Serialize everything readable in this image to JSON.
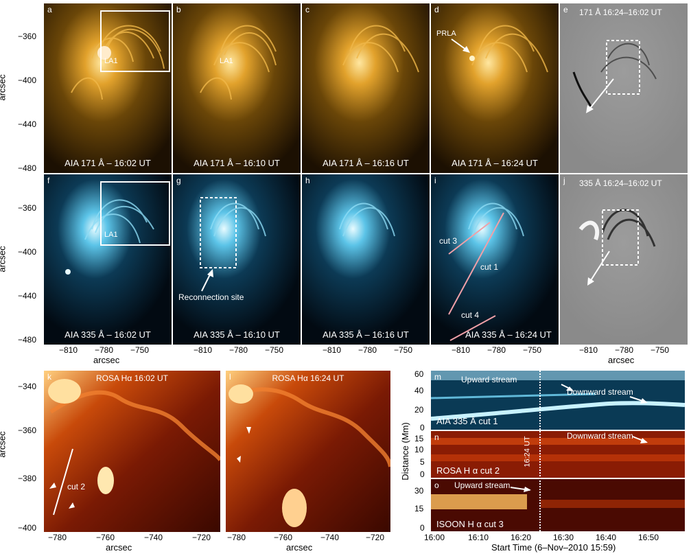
{
  "row1": {
    "panels": [
      {
        "label": "a",
        "caption": "AIA 171 Å – 16:02 UT",
        "annotation": "LA1"
      },
      {
        "label": "b",
        "caption": "AIA 171 Å – 16:10 UT",
        "annotation": "LA1"
      },
      {
        "label": "c",
        "caption": "AIA 171 Å – 16:16 UT"
      },
      {
        "label": "d",
        "caption": "AIA 171 Å – 16:24 UT",
        "annotation": "PRLA"
      },
      {
        "label": "e",
        "title": "171 Å 16:24–16:02 UT"
      }
    ],
    "yticks": [
      "−360",
      "−400",
      "−440",
      "−480"
    ],
    "ylabel": "arcsec"
  },
  "row2": {
    "panels": [
      {
        "label": "f",
        "caption": "AIA 335 Å – 16:02 UT",
        "annotation": "LA1"
      },
      {
        "label": "g",
        "caption": "AIA 335 Å – 16:10 UT",
        "annotation": "Reconnection site"
      },
      {
        "label": "h",
        "caption": "AIA 335 Å – 16:16 UT"
      },
      {
        "label": "i",
        "caption": "AIA 335 Å – 16:24 UT",
        "cut3": "cut 3",
        "cut1": "cut 1",
        "cut4": "cut 4"
      },
      {
        "label": "j",
        "title": "335 Å 16:24–16:02 UT"
      }
    ],
    "yticks": [
      "−360",
      "−400",
      "−440",
      "−480"
    ],
    "ylabel": "arcsec",
    "xticks": [
      "−810",
      "−780",
      "−750"
    ],
    "xlabel": "arcsec"
  },
  "row3": {
    "k": {
      "label": "k",
      "title": "ROSA Hα 16:02 UT",
      "cut": "cut 2"
    },
    "l": {
      "label": "l",
      "title": "ROSA Hα 16:24 UT"
    },
    "yticks": [
      "−340",
      "−360",
      "−380",
      "−400"
    ],
    "xticks": [
      "−780",
      "−760",
      "−740",
      "−720"
    ],
    "ylabel": "arcsec",
    "xlabel": "arcsec"
  },
  "timeplots": {
    "m": {
      "label": "m",
      "caption": "AIA 335 Å cut 1",
      "up": "Upward stream",
      "down": "Downward stream",
      "yticks": [
        "60",
        "40",
        "20",
        "0"
      ]
    },
    "n": {
      "label": "n",
      "caption": "ROSA H α cut 2",
      "down": "Downward stream",
      "vtext": "16:24 UT",
      "yticks": [
        "15",
        "10",
        "5",
        "0"
      ]
    },
    "o": {
      "label": "o",
      "caption": "ISOON H α cut 3",
      "up": "Upward stream",
      "yticks": [
        "30",
        "15",
        "0"
      ]
    },
    "ylabel": "Distance (Mm)",
    "xticks": [
      "16:00",
      "16:10",
      "16:20",
      "16:30",
      "16:40",
      "16:50"
    ],
    "xlabel": "Start Time (6–Nov–2010 15:59)"
  },
  "colors": {
    "aia171": "#c48a18",
    "aia335": "#4fb6d8",
    "halpha": "#e06010",
    "diff": "#a0a0a0"
  }
}
